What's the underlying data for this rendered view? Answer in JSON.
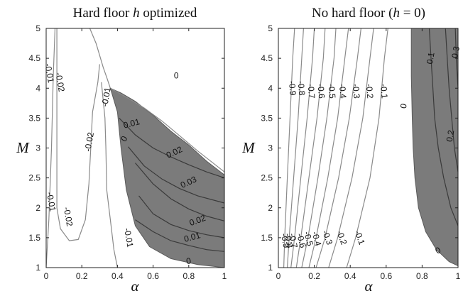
{
  "chart_data": [
    {
      "type": "contour",
      "title_parts": [
        "Hard floor ",
        "h",
        " optimized"
      ],
      "xlabel": "α",
      "ylabel": "M",
      "xlim": [
        0,
        1
      ],
      "ylim": [
        1,
        5
      ],
      "xticks": [
        "0",
        "0.2",
        "0.4",
        "0.6",
        "0.8",
        "1"
      ],
      "yticks": [
        "1",
        "1.5",
        "2",
        "2.5",
        "3",
        "3.5",
        "4",
        "4.5",
        "5"
      ],
      "shaded_region": {
        "description": "positive region",
        "boundary": [
          [
            0.36,
            4.0
          ],
          [
            0.4,
            3.6
          ],
          [
            0.42,
            3.0
          ],
          [
            0.45,
            2.3
          ],
          [
            0.5,
            1.7
          ],
          [
            0.58,
            1.35
          ],
          [
            0.7,
            1.15
          ],
          [
            0.85,
            1.05
          ],
          [
            1.0,
            1.0
          ],
          [
            1.0,
            2.55
          ],
          [
            0.9,
            2.78
          ],
          [
            0.8,
            3.05
          ],
          [
            0.7,
            3.28
          ],
          [
            0.6,
            3.55
          ],
          [
            0.5,
            3.78
          ],
          [
            0.42,
            3.92
          ]
        ]
      },
      "contours": [
        {
          "level": "-0.01",
          "tone": "light",
          "points": [
            [
              0.0,
              1.0
            ],
            [
              0.015,
              1.8
            ],
            [
              0.03,
              3.0
            ],
            [
              0.04,
              4.2
            ],
            [
              0.05,
              5.0
            ]
          ]
        },
        {
          "level": "-0.02",
          "tone": "light",
          "points": [
            [
              0.06,
              5.0
            ],
            [
              0.06,
              4.2
            ],
            [
              0.06,
              3.0
            ],
            [
              0.06,
              2.0
            ],
            [
              0.08,
              1.65
            ],
            [
              0.13,
              1.45
            ],
            [
              0.18,
              1.47
            ],
            [
              0.22,
              1.8
            ],
            [
              0.24,
              2.4
            ],
            [
              0.25,
              3.0
            ],
            [
              0.26,
              3.6
            ],
            [
              0.29,
              4.1
            ],
            [
              0.3,
              4.4
            ]
          ]
        },
        {
          "level": "-0.01",
          "tone": "light",
          "points": [
            [
              0.31,
              4.1
            ],
            [
              0.33,
              3.5
            ],
            [
              0.335,
              3.0
            ],
            [
              0.34,
              2.3
            ],
            [
              0.36,
              1.8
            ],
            [
              0.38,
              1.3
            ],
            [
              0.4,
              1.0
            ]
          ]
        },
        {
          "level": "0",
          "tone": "light",
          "points": [
            [
              0.245,
              5.0
            ],
            [
              0.28,
              4.75
            ],
            [
              0.3,
              4.55
            ],
            [
              0.32,
              4.35
            ],
            [
              0.34,
              4.18
            ],
            [
              0.36,
              4.0
            ],
            [
              0.45,
              3.85
            ],
            [
              0.55,
              3.67
            ],
            [
              0.65,
              3.45
            ],
            [
              0.75,
              3.2
            ],
            [
              0.85,
              2.95
            ],
            [
              1.0,
              2.6
            ]
          ]
        },
        {
          "level": "0.01",
          "tone": "dark",
          "points": [
            [
              0.41,
              3.5
            ],
            [
              0.5,
              3.22
            ],
            [
              0.6,
              3.0
            ],
            [
              0.7,
              2.85
            ],
            [
              0.8,
              2.72
            ],
            [
              0.9,
              2.6
            ],
            [
              1.0,
              2.5
            ]
          ]
        },
        {
          "level": "0.02",
          "tone": "dark",
          "points": [
            [
              0.46,
              3.02
            ],
            [
              0.55,
              2.7
            ],
            [
              0.65,
              2.48
            ],
            [
              0.75,
              2.32
            ],
            [
              0.85,
              2.2
            ],
            [
              1.0,
              2.08
            ]
          ]
        },
        {
          "level": "0.03",
          "tone": "dark",
          "points": [
            [
              0.5,
              2.75
            ],
            [
              0.6,
              2.4
            ],
            [
              0.7,
              2.15
            ],
            [
              0.8,
              1.98
            ],
            [
              0.9,
              1.86
            ],
            [
              1.0,
              1.78
            ]
          ]
        },
        {
          "level": "0.02",
          "tone": "dark",
          "points": [
            [
              0.52,
              2.2
            ],
            [
              0.6,
              1.9
            ],
            [
              0.7,
              1.72
            ],
            [
              0.8,
              1.62
            ],
            [
              0.9,
              1.55
            ],
            [
              1.0,
              1.5
            ]
          ]
        },
        {
          "level": "0.01",
          "tone": "dark",
          "points": [
            [
              0.5,
              1.8
            ],
            [
              0.6,
              1.6
            ],
            [
              0.7,
              1.45
            ],
            [
              0.8,
              1.37
            ],
            [
              0.9,
              1.3
            ],
            [
              1.0,
              1.27
            ]
          ]
        }
      ],
      "labels": [
        {
          "text": "0",
          "x": 0.73,
          "y": 4.2
        },
        {
          "text": "-0.01",
          "x": 0.015,
          "y": 4.25,
          "rot": 80
        },
        {
          "text": "-0.02",
          "x": 0.075,
          "y": 4.1,
          "rot": 80
        },
        {
          "text": "-0.01",
          "x": 0.34,
          "y": 3.85,
          "rot": -80
        },
        {
          "text": "-0.02",
          "x": 0.245,
          "y": 3.1,
          "rot": -80
        },
        {
          "text": "0.01",
          "x": 0.48,
          "y": 3.4,
          "rot": -15
        },
        {
          "text": "0",
          "x": 0.44,
          "y": 3.15,
          "rot": -60
        },
        {
          "text": "0.02",
          "x": 0.72,
          "y": 2.92,
          "rot": -25
        },
        {
          "text": "0.03",
          "x": 0.8,
          "y": 2.42,
          "rot": -25
        },
        {
          "text": "-0.01",
          "x": 0.025,
          "y": 2.1,
          "rot": 80
        },
        {
          "text": "-0.02",
          "x": 0.12,
          "y": 1.85,
          "rot": 80
        },
        {
          "text": "0.02",
          "x": 0.85,
          "y": 1.78,
          "rot": -20
        },
        {
          "text": "0.01",
          "x": 0.82,
          "y": 1.5,
          "rot": -15
        },
        {
          "text": "-0.01",
          "x": 0.46,
          "y": 1.5,
          "rot": 80
        },
        {
          "text": "0",
          "x": 0.8,
          "y": 1.1,
          "rot": -10
        }
      ]
    },
    {
      "type": "contour",
      "title_parts": [
        "No hard floor (",
        "h",
        " = 0)"
      ],
      "xlabel": "α",
      "ylabel": "M",
      "xlim": [
        0,
        1
      ],
      "ylim": [
        1,
        5
      ],
      "xticks": [
        "0",
        "0.2",
        "0.4",
        "0.6",
        "0.8",
        "1"
      ],
      "yticks": [
        "1",
        "1.5",
        "2",
        "2.5",
        "3",
        "3.5",
        "4",
        "4.5",
        "5"
      ],
      "shaded_region": {
        "description": "positive region",
        "boundary": [
          [
            0.74,
            5.0
          ],
          [
            0.74,
            4.2
          ],
          [
            0.745,
            3.5
          ],
          [
            0.75,
            3.0
          ],
          [
            0.76,
            2.5
          ],
          [
            0.78,
            2.0
          ],
          [
            0.82,
            1.6
          ],
          [
            0.88,
            1.3
          ],
          [
            0.95,
            1.1
          ],
          [
            1.0,
            1.03
          ],
          [
            1.0,
            5.0
          ]
        ]
      },
      "contours": [
        {
          "level": "-0.9",
          "tone": "light",
          "points": [
            [
              0.03,
              1.0
            ],
            [
              0.035,
              1.5
            ],
            [
              0.05,
              2.5
            ],
            [
              0.065,
              3.5
            ],
            [
              0.08,
              4.5
            ],
            [
              0.09,
              5.0
            ]
          ]
        },
        {
          "level": "-0.8",
          "tone": "light",
          "points": [
            [
              0.05,
              1.0
            ],
            [
              0.06,
              1.5
            ],
            [
              0.085,
              2.5
            ],
            [
              0.11,
              3.5
            ],
            [
              0.13,
              4.5
            ],
            [
              0.14,
              5.0
            ]
          ]
        },
        {
          "level": "-0.7",
          "tone": "light",
          "points": [
            [
              0.07,
              1.0
            ],
            [
              0.09,
              1.5
            ],
            [
              0.125,
              2.5
            ],
            [
              0.16,
              3.5
            ],
            [
              0.19,
              4.5
            ],
            [
              0.2,
              5.0
            ]
          ]
        },
        {
          "level": "-0.6",
          "tone": "light",
          "points": [
            [
              0.1,
              1.0
            ],
            [
              0.125,
              1.5
            ],
            [
              0.17,
              2.5
            ],
            [
              0.215,
              3.5
            ],
            [
              0.25,
              4.5
            ],
            [
              0.26,
              5.0
            ]
          ]
        },
        {
          "level": "-0.5",
          "tone": "light",
          "points": [
            [
              0.13,
              1.0
            ],
            [
              0.165,
              1.5
            ],
            [
              0.22,
              2.5
            ],
            [
              0.27,
              3.5
            ],
            [
              0.31,
              4.5
            ],
            [
              0.32,
              5.0
            ]
          ]
        },
        {
          "level": "-0.4",
          "tone": "light",
          "points": [
            [
              0.17,
              1.0
            ],
            [
              0.21,
              1.5
            ],
            [
              0.275,
              2.5
            ],
            [
              0.33,
              3.5
            ],
            [
              0.37,
              4.5
            ],
            [
              0.39,
              5.0
            ]
          ]
        },
        {
          "level": "-0.3",
          "tone": "light",
          "points": [
            [
              0.21,
              1.0
            ],
            [
              0.26,
              1.5
            ],
            [
              0.335,
              2.5
            ],
            [
              0.395,
              3.5
            ],
            [
              0.44,
              4.5
            ],
            [
              0.46,
              5.0
            ]
          ]
        },
        {
          "level": "-0.2",
          "tone": "light",
          "points": [
            [
              0.28,
              1.0
            ],
            [
              0.33,
              1.5
            ],
            [
              0.41,
              2.5
            ],
            [
              0.47,
              3.5
            ],
            [
              0.51,
              4.5
            ],
            [
              0.53,
              5.0
            ]
          ]
        },
        {
          "level": "-0.1",
          "tone": "light",
          "points": [
            [
              0.38,
              1.0
            ],
            [
              0.43,
              1.5
            ],
            [
              0.51,
              2.5
            ],
            [
              0.56,
              3.5
            ],
            [
              0.59,
              4.5
            ],
            [
              0.61,
              5.0
            ]
          ]
        },
        {
          "level": "0.1",
          "tone": "dark",
          "points": [
            [
              0.84,
              5.0
            ],
            [
              0.85,
              4.5
            ],
            [
              0.86,
              4.0
            ],
            [
              0.87,
              3.5
            ],
            [
              0.89,
              3.0
            ],
            [
              0.92,
              2.5
            ],
            [
              0.96,
              2.0
            ],
            [
              1.0,
              1.7
            ]
          ]
        },
        {
          "level": "0.2",
          "tone": "dark",
          "points": [
            [
              0.93,
              5.0
            ],
            [
              0.94,
              4.5
            ],
            [
              0.95,
              4.0
            ],
            [
              0.965,
              3.5
            ],
            [
              0.98,
              3.0
            ],
            [
              1.0,
              2.6
            ]
          ]
        },
        {
          "level": "0.3",
          "tone": "dark",
          "points": [
            [
              0.985,
              5.0
            ],
            [
              0.99,
              4.5
            ],
            [
              1.0,
              4.0
            ]
          ]
        }
      ],
      "labels": [
        {
          "text": "-0.9",
          "x": 0.075,
          "y": 4.0,
          "rot": 85
        },
        {
          "text": "-0.8",
          "x": 0.125,
          "y": 4.0,
          "rot": 85
        },
        {
          "text": "-0.7",
          "x": 0.18,
          "y": 3.95,
          "rot": 85
        },
        {
          "text": "-0.6",
          "x": 0.235,
          "y": 3.95,
          "rot": 85
        },
        {
          "text": "-0.5",
          "x": 0.295,
          "y": 3.95,
          "rot": 85
        },
        {
          "text": "-0.4",
          "x": 0.355,
          "y": 3.95,
          "rot": 85
        },
        {
          "text": "-0.3",
          "x": 0.43,
          "y": 3.95,
          "rot": 85
        },
        {
          "text": "-0.2",
          "x": 0.505,
          "y": 3.95,
          "rot": 85
        },
        {
          "text": "-0.1",
          "x": 0.585,
          "y": 3.95,
          "rot": 85
        },
        {
          "text": "0",
          "x": 0.7,
          "y": 3.7,
          "rot": -80
        },
        {
          "text": "0.1",
          "x": 0.85,
          "y": 4.5,
          "rot": -80
        },
        {
          "text": "0.2",
          "x": 0.96,
          "y": 3.2,
          "rot": -80
        },
        {
          "text": "0.3",
          "x": 0.99,
          "y": 4.6,
          "rot": -80
        },
        {
          "text": "-0.9",
          "x": 0.035,
          "y": 1.45,
          "rot": 80
        },
        {
          "text": "-0.8",
          "x": 0.055,
          "y": 1.45,
          "rot": 80
        },
        {
          "text": "-0.7",
          "x": 0.08,
          "y": 1.45,
          "rot": 80
        },
        {
          "text": "-0.6",
          "x": 0.125,
          "y": 1.45,
          "rot": 75
        },
        {
          "text": "-0.5",
          "x": 0.165,
          "y": 1.48,
          "rot": 75
        },
        {
          "text": "-0.4",
          "x": 0.21,
          "y": 1.48,
          "rot": 75
        },
        {
          "text": "-0.3",
          "x": 0.27,
          "y": 1.5,
          "rot": 70
        },
        {
          "text": "-0.2",
          "x": 0.35,
          "y": 1.5,
          "rot": 70
        },
        {
          "text": "-0.1",
          "x": 0.45,
          "y": 1.5,
          "rot": 70
        },
        {
          "text": "0",
          "x": 0.89,
          "y": 1.28,
          "rot": -30
        }
      ]
    }
  ]
}
